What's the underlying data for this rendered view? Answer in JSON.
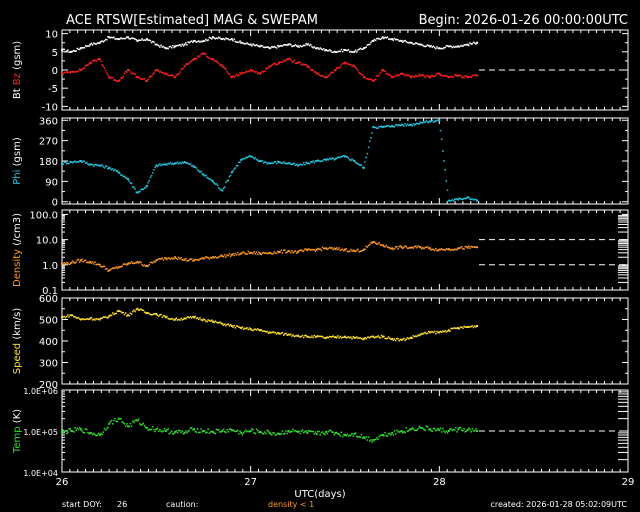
{
  "header": {
    "title": "ACE RTSW[Estimated] MAG & SWEPAM",
    "begin": "Begin: 2026-01-26 00:00:00UTC"
  },
  "footer": {
    "start_doy_label": "start DOY:",
    "start_doy": "26",
    "caution_label": "caution:",
    "caution_text": "density < 1",
    "created": "created: 2026-01-28 05:02:09UTC"
  },
  "colors": {
    "bt": "#ffffff",
    "bz": "#ff2020",
    "phi": "#22c8e0",
    "density": "#ff9a20",
    "speed": "#ffe030",
    "temp": "#30e030",
    "axes": "#ffffff",
    "background": "#000000"
  },
  "chart_data": {
    "type": "scatter",
    "x_label": "UTC(days)",
    "x_ticks": [
      "26",
      "27",
      "28",
      "29"
    ],
    "x_range": [
      26,
      29
    ],
    "data_end_day": 28.21,
    "panels": [
      {
        "id": "mag",
        "ylabel_parts": [
          "Bt",
          "Bz",
          "(gsm)"
        ],
        "ylim": [
          -11,
          11
        ],
        "yticks": [
          -10,
          -5,
          0,
          5,
          10
        ],
        "ytick_labels": [
          "-10",
          "-5",
          "0",
          "5",
          "10"
        ],
        "dashed_refs": [
          0
        ],
        "log": false,
        "series": [
          {
            "name": "Bt",
            "color": "#ffffff",
            "x": [
              26.0,
              26.05,
              26.1,
              26.15,
              26.2,
              26.25,
              26.3,
              26.35,
              26.4,
              26.45,
              26.5,
              26.55,
              26.6,
              26.65,
              26.7,
              26.75,
              26.8,
              26.85,
              26.9,
              26.95,
              27.0,
              27.05,
              27.1,
              27.15,
              27.2,
              27.25,
              27.3,
              27.35,
              27.4,
              27.45,
              27.5,
              27.55,
              27.6,
              27.65,
              27.7,
              27.75,
              27.8,
              27.85,
              27.9,
              27.95,
              28.0,
              28.05,
              28.1,
              28.15,
              28.2
            ],
            "y": [
              5.5,
              5.0,
              6.0,
              7.0,
              7.5,
              9.0,
              8.5,
              9.0,
              8.0,
              8.5,
              7.0,
              6.0,
              6.5,
              7.0,
              8.0,
              8.0,
              9.0,
              8.5,
              8.5,
              7.5,
              7.0,
              6.5,
              6.0,
              6.5,
              7.0,
              6.5,
              7.0,
              6.0,
              5.5,
              5.0,
              5.5,
              5.0,
              6.0,
              8.0,
              9.0,
              8.5,
              8.0,
              7.5,
              7.0,
              6.5,
              6.0,
              6.5,
              6.5,
              7.0,
              7.5
            ]
          },
          {
            "name": "Bz",
            "color": "#ff2020",
            "x": [
              26.0,
              26.05,
              26.1,
              26.15,
              26.2,
              26.25,
              26.3,
              26.35,
              26.4,
              26.45,
              26.5,
              26.55,
              26.6,
              26.65,
              26.7,
              26.75,
              26.8,
              26.85,
              26.9,
              26.95,
              27.0,
              27.05,
              27.1,
              27.15,
              27.2,
              27.25,
              27.3,
              27.35,
              27.4,
              27.45,
              27.5,
              27.55,
              27.6,
              27.65,
              27.7,
              27.75,
              27.8,
              27.85,
              27.9,
              27.95,
              28.0,
              28.05,
              28.1,
              28.15,
              28.2
            ],
            "y": [
              -1.0,
              -0.5,
              0.0,
              2.0,
              3.0,
              -2.0,
              -3.0,
              0.0,
              -2.0,
              -3.0,
              0.0,
              -1.0,
              -2.0,
              1.0,
              3.0,
              4.5,
              3.0,
              1.0,
              -2.0,
              -1.0,
              0.0,
              -1.0,
              1.0,
              2.0,
              3.0,
              2.0,
              1.0,
              -1.0,
              -2.0,
              0.0,
              2.0,
              1.0,
              -2.0,
              -3.0,
              0.0,
              -2.0,
              -1.0,
              -2.0,
              -1.5,
              -2.0,
              -1.0,
              -2.0,
              -1.5,
              -2.0,
              -1.5
            ]
          }
        ]
      },
      {
        "id": "phi",
        "ylabel_parts": [
          "Phi",
          "(gsm)"
        ],
        "ylim": [
          -10,
          370
        ],
        "yticks": [
          0,
          90,
          180,
          270,
          360
        ],
        "ytick_labels": [
          "0",
          "90",
          "180",
          "270",
          "360"
        ],
        "dashed_refs": [],
        "log": false,
        "series": [
          {
            "name": "Phi",
            "color": "#22c8e0",
            "x": [
              26.0,
              26.05,
              26.1,
              26.15,
              26.2,
              26.25,
              26.3,
              26.35,
              26.4,
              26.45,
              26.5,
              26.55,
              26.6,
              26.65,
              26.7,
              26.75,
              26.8,
              26.85,
              26.9,
              26.95,
              27.0,
              27.05,
              27.1,
              27.15,
              27.2,
              27.25,
              27.3,
              27.35,
              27.4,
              27.45,
              27.5,
              27.55,
              27.6,
              27.65,
              27.7,
              27.75,
              27.8,
              27.85,
              27.9,
              27.95,
              28.0,
              28.05,
              28.1,
              28.15,
              28.2
            ],
            "y": [
              170,
              175,
              180,
              165,
              160,
              150,
              130,
              100,
              40,
              70,
              160,
              165,
              170,
              175,
              155,
              120,
              90,
              50,
              130,
              185,
              200,
              180,
              170,
              175,
              170,
              160,
              170,
              180,
              185,
              190,
              200,
              180,
              150,
              330,
              330,
              335,
              340,
              340,
              350,
              355,
              360,
              5,
              10,
              20,
              5
            ]
          }
        ]
      },
      {
        "id": "density",
        "ylabel_parts": [
          "Density",
          "(/cm3)"
        ],
        "ylim": [
          0.1,
          150
        ],
        "yticks": [
          0.1,
          1.0,
          10.0,
          100.0
        ],
        "ytick_labels": [
          "0.1",
          "1.0",
          "10.0",
          "100.0"
        ],
        "dashed_refs": [
          1,
          10
        ],
        "log": true,
        "series": [
          {
            "name": "Density",
            "color": "#ff9a20",
            "x": [
              26.0,
              26.05,
              26.1,
              26.15,
              26.2,
              26.25,
              26.3,
              26.35,
              26.4,
              26.45,
              26.5,
              26.55,
              26.6,
              26.65,
              26.7,
              26.75,
              26.8,
              26.85,
              26.9,
              26.95,
              27.0,
              27.05,
              27.1,
              27.15,
              27.2,
              27.25,
              27.3,
              27.35,
              27.4,
              27.45,
              27.5,
              27.55,
              27.6,
              27.65,
              27.7,
              27.75,
              27.8,
              27.85,
              27.9,
              27.95,
              28.0,
              28.05,
              28.1,
              28.15,
              28.2
            ],
            "y": [
              1.1,
              1.2,
              1.5,
              1.3,
              1.0,
              0.6,
              0.8,
              1.1,
              1.3,
              0.9,
              1.5,
              1.8,
              2.0,
              1.6,
              1.5,
              1.8,
              2.0,
              2.2,
              2.5,
              2.8,
              3.0,
              2.8,
              3.0,
              3.2,
              3.5,
              3.2,
              3.8,
              4.0,
              4.5,
              4.2,
              4.0,
              3.5,
              4.0,
              8.0,
              6.0,
              4.5,
              5.0,
              4.8,
              5.0,
              4.5,
              4.0,
              4.2,
              4.5,
              4.8,
              5.0
            ]
          }
        ]
      },
      {
        "id": "speed",
        "ylabel_parts": [
          "Speed",
          "(km/s)"
        ],
        "ylim": [
          200,
          600
        ],
        "yticks": [
          200,
          300,
          400,
          500,
          600
        ],
        "ytick_labels": [
          "200",
          "300",
          "400",
          "500",
          "600"
        ],
        "dashed_refs": [],
        "log": false,
        "series": [
          {
            "name": "Speed",
            "color": "#ffe030",
            "x": [
              26.0,
              26.05,
              26.1,
              26.15,
              26.2,
              26.25,
              26.3,
              26.35,
              26.4,
              26.45,
              26.5,
              26.55,
              26.6,
              26.65,
              26.7,
              26.75,
              26.8,
              26.85,
              26.9,
              26.95,
              27.0,
              27.05,
              27.1,
              27.15,
              27.2,
              27.25,
              27.3,
              27.35,
              27.4,
              27.45,
              27.5,
              27.55,
              27.6,
              27.65,
              27.7,
              27.75,
              27.8,
              27.85,
              27.9,
              27.95,
              28.0,
              28.05,
              28.1,
              28.15,
              28.2
            ],
            "y": [
              510,
              520,
              500,
              505,
              500,
              515,
              540,
              520,
              550,
              530,
              525,
              510,
              500,
              505,
              510,
              500,
              490,
              480,
              470,
              460,
              455,
              450,
              440,
              435,
              430,
              425,
              420,
              420,
              415,
              418,
              420,
              415,
              410,
              420,
              420,
              410,
              405,
              415,
              430,
              440,
              440,
              450,
              460,
              465,
              470
            ]
          }
        ]
      },
      {
        "id": "temp",
        "ylabel_parts": [
          "Temp",
          "(K)"
        ],
        "ylim": [
          10000,
          1000000
        ],
        "yticks": [
          10000,
          100000,
          1000000
        ],
        "ytick_labels": [
          "1.0E+04",
          "1.0E+05",
          "1.0E+06"
        ],
        "dashed_refs": [
          100000
        ],
        "log": true,
        "series": [
          {
            "name": "Temp",
            "color": "#30e030",
            "x": [
              26.0,
              26.05,
              26.1,
              26.15,
              26.2,
              26.25,
              26.3,
              26.35,
              26.4,
              26.45,
              26.5,
              26.55,
              26.6,
              26.65,
              26.7,
              26.75,
              26.8,
              26.85,
              26.9,
              26.95,
              27.0,
              27.05,
              27.1,
              27.15,
              27.2,
              27.25,
              27.3,
              27.35,
              27.4,
              27.45,
              27.5,
              27.55,
              27.6,
              27.65,
              27.7,
              27.75,
              27.8,
              27.85,
              27.9,
              27.95,
              28.0,
              28.05,
              28.1,
              28.15,
              28.2
            ],
            "y": [
              95000,
              100000,
              110000,
              90000,
              80000,
              150000,
              200000,
              130000,
              180000,
              120000,
              110000,
              100000,
              95000,
              90000,
              110000,
              100000,
              95000,
              100000,
              105000,
              90000,
              100000,
              95000,
              90000,
              85000,
              100000,
              95000,
              90000,
              85000,
              95000,
              90000,
              80000,
              85000,
              70000,
              60000,
              80000,
              90000,
              100000,
              110000,
              120000,
              110000,
              105000,
              100000,
              110000,
              105000,
              100000
            ]
          }
        ]
      }
    ]
  }
}
